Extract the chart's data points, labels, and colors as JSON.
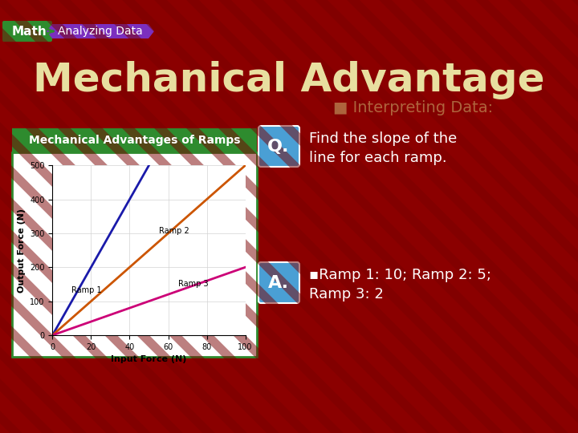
{
  "title": "Mechanical Advantage",
  "bg_color": "#8B0000",
  "chart_title": "Mechanical Advantages of Ramps",
  "chart_title_bg": "#2e8b2e",
  "chart_title_color": "white",
  "xlabel": "Input Force (N)",
  "ylabel": "Output Force (N)",
  "xlim": [
    0,
    100
  ],
  "ylim": [
    0,
    500
  ],
  "xticks": [
    0,
    20,
    40,
    60,
    80,
    100
  ],
  "yticks": [
    0,
    100,
    200,
    300,
    400,
    500
  ],
  "ramp1_color": "#1a1aaa",
  "ramp2_color": "#cc5500",
  "ramp3_color": "#cc0077",
  "ramp1_slope": 10,
  "ramp2_slope": 5,
  "ramp3_slope": 2,
  "ramp1_label": "Ramp 1",
  "ramp2_label": "Ramp 2",
  "ramp3_label": "Ramp 3",
  "math_label": "Math",
  "math_bg": "#2e8b2e",
  "analyzing_label": "Analyzing Data",
  "analyzing_bg": "#7b2fbe",
  "interpreting_text": "Interpreting Data:",
  "interpreting_color": "#d4c87a",
  "q_text": "Find the slope of the\nline for each ramp.",
  "q_color": "white",
  "q_badge_color": "#4a9fd4",
  "a_text": "▪Ramp 1: 10; Ramp 2: 5;\nRamp 3: 2",
  "a_color": "white",
  "a_badge_color": "#4a9fd4",
  "chart_border_color": "#2e8b2e",
  "stripe_color": "#7a0000"
}
